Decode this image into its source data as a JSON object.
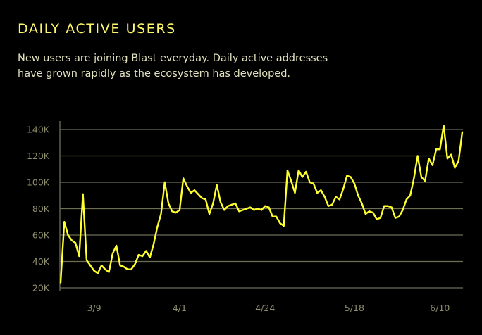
{
  "header": {
    "title": "DAILY ACTIVE USERS",
    "description_line1": "New users are joining Blast everyday. Daily active addresses",
    "description_line2": "have grown rapidly as the ecosystem has developed."
  },
  "colors": {
    "accent": "#fdf76a",
    "line": "#ffff2e",
    "grid": "#6e6e56",
    "axis_text": "#8e8e6c",
    "text": "#e3e2bf",
    "background": "#000000"
  },
  "chart_data": {
    "type": "line",
    "title": "",
    "xlabel": "",
    "ylabel": "",
    "ylim": [
      20000,
      140000
    ],
    "grid": true,
    "y_ticks": [
      20000,
      40000,
      60000,
      80000,
      100000,
      120000,
      140000
    ],
    "y_tick_labels": [
      "20K",
      "40K",
      "60K",
      "80K",
      "100K",
      "120K",
      "140K"
    ],
    "x_tick_labels": [
      "3/9",
      "4/1",
      "4/24",
      "5/18",
      "6/10"
    ],
    "x_start_label": "2/29",
    "series": [
      {
        "values": [
          24000,
          70000,
          60000,
          56000,
          54000,
          44000,
          91000,
          41000,
          37000,
          33000,
          31000,
          37000,
          34000,
          32000,
          46000,
          52000,
          37000,
          36000,
          34000,
          34000,
          38000,
          45000,
          44000,
          48000,
          43000,
          53000,
          66000,
          76000,
          100000,
          84000,
          78000,
          77000,
          79000,
          103000,
          97000,
          92000,
          94000,
          91000,
          88000,
          87000,
          76000,
          84000,
          98000,
          85000,
          79000,
          82000,
          83000,
          84000,
          78000,
          79000,
          80000,
          81000,
          79000,
          80000,
          79000,
          82000,
          81000,
          74000,
          74000,
          69000,
          67000,
          109000,
          101000,
          92000,
          109000,
          104000,
          108000,
          100000,
          99000,
          92000,
          94000,
          89000,
          82000,
          83000,
          89000,
          87000,
          95000,
          105000,
          104000,
          99000,
          90000,
          84000,
          76000,
          78000,
          77000,
          72000,
          73000,
          82000,
          82000,
          81000,
          73000,
          74000,
          79000,
          87000,
          90000,
          103000,
          120000,
          104000,
          101000,
          118000,
          113000,
          125000,
          125000,
          143000,
          118000,
          121000,
          111000,
          116000,
          138000
        ]
      }
    ]
  }
}
